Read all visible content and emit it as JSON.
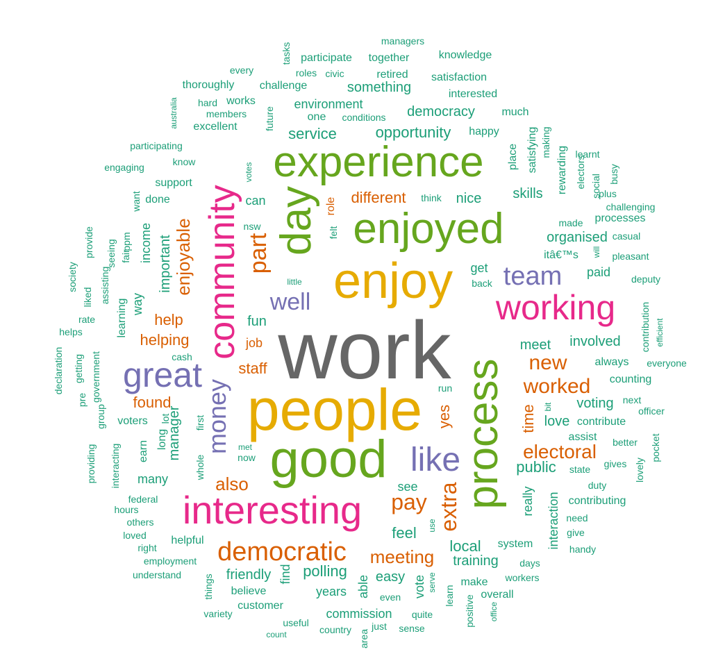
{
  "colors": {
    "gray": "#666666",
    "gold": "#E6AB02",
    "green": "#66A61E",
    "pink": "#E7298A",
    "purple": "#7570B3",
    "orange": "#D95F02",
    "teal": "#1B9E77"
  },
  "words": [
    "work",
    "people",
    "enjoy",
    "good",
    "enjoyed",
    "experience",
    "process",
    "interesting",
    "day",
    "community",
    "working",
    "great",
    "like",
    "democratic",
    "team",
    "money",
    "part",
    "well",
    "pay",
    "extra",
    "meeting",
    "new",
    "worked",
    "electoral",
    "also",
    "public",
    "local",
    "feel",
    "help",
    "helping",
    "enjoyable",
    "found",
    "staff",
    "fun",
    "job",
    "different",
    "important",
    "manager",
    "yes",
    "time",
    "polling",
    "friendly",
    "really",
    "income",
    "vote",
    "training",
    "commission",
    "service",
    "opportunity",
    "democracy",
    "environment",
    "something",
    "challenge",
    "organised",
    "skills",
    "nice",
    "meet",
    "involved",
    "voting",
    "love",
    "contribute",
    "assist",
    "interaction",
    "easy",
    "years",
    "believe",
    "customer",
    "see",
    "get",
    "paid",
    "itâ€™s",
    "always",
    "counting",
    "processes",
    "made",
    "thoroughly",
    "support",
    "done",
    "know",
    "can",
    "nsw",
    "role",
    "felt",
    "think",
    "run",
    "place",
    "satisfying",
    "rewarding",
    "learnt",
    "busy",
    "social",
    "plus",
    "challenging",
    "casual",
    "pleasant",
    "will",
    "deputy",
    "contribution",
    "efficient",
    "everyone",
    "next",
    "officer",
    "better",
    "pocket",
    "lovely",
    "gives",
    "duty",
    "contributing",
    "need",
    "give",
    "handy",
    "state",
    "system",
    "days",
    "workers",
    "overall",
    "make",
    "positive",
    "office",
    "learn",
    "serve",
    "quite",
    "sense",
    "just",
    "area",
    "useful",
    "count",
    "country",
    "variety",
    "things",
    "understand",
    "employment",
    "right",
    "loved",
    "others",
    "hours",
    "federal",
    "interacting",
    "providing",
    "helpful",
    "many",
    "earn",
    "long",
    "lot",
    "first",
    "whole",
    "met",
    "now",
    "voters",
    "group",
    "government",
    "pre",
    "getting",
    "declaration",
    "helps",
    "rate",
    "liked",
    "society",
    "assisting",
    "seeing",
    "provide",
    "fair",
    "ppm",
    "want",
    "learning",
    "way",
    "little",
    "back",
    "cash",
    "bit",
    "find",
    "able",
    "even",
    "use",
    "managers",
    "together",
    "participate",
    "knowledge",
    "retired",
    "satisfaction",
    "interested",
    "much",
    "happy",
    "tasks",
    "every",
    "roles",
    "civic",
    "works",
    "hard",
    "members",
    "one",
    "conditions",
    "future",
    "votes",
    "excellent",
    "australia",
    "participating",
    "engaging",
    "making",
    "electors",
    "customer",
    "employment",
    "contributing"
  ]
}
